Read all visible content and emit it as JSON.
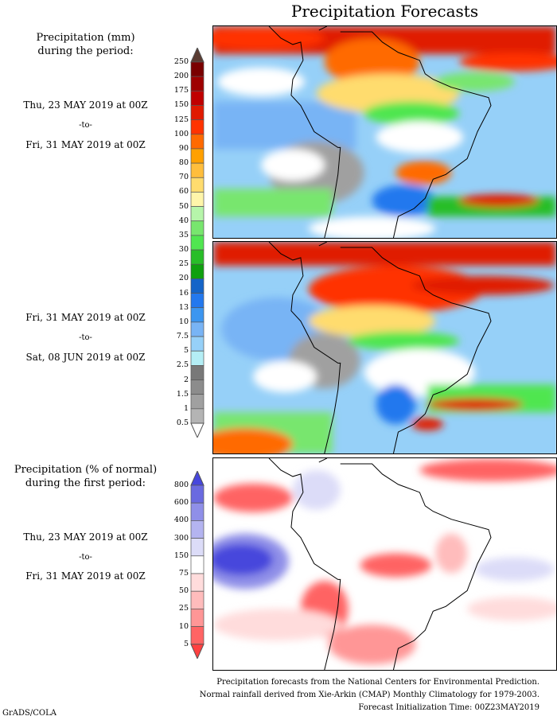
{
  "title": "Precipitation Forecasts",
  "period1": {
    "heading": [
      "Precipitation (mm)",
      "during the period:"
    ],
    "start": "Thu, 23 MAY 2019 at 00Z",
    "to": "-to-",
    "end": "Fri, 31 MAY 2019 at 00Z"
  },
  "period2": {
    "start": "Fri, 31 MAY 2019 at 00Z",
    "to": "-to-",
    "end": "Sat, 08 JUN 2019 at 00Z"
  },
  "period3": {
    "heading": [
      "Precipitation (% of normal)",
      "during the first period:"
    ],
    "start": "Thu, 23 MAY 2019 at 00Z",
    "to": "-to-",
    "end": "Fri, 31 MAY 2019 at 00Z"
  },
  "mm_scale": {
    "labels": [
      "250",
      "200",
      "175",
      "150",
      "125",
      "100",
      "90",
      "80",
      "70",
      "60",
      "50",
      "40",
      "35",
      "30",
      "25",
      "20",
      "16",
      "13",
      "10",
      "7.5",
      "5",
      "2.5",
      "2",
      "1.5",
      "1",
      "0.5"
    ],
    "colors": [
      "#7a0000",
      "#9e0000",
      "#c00000",
      "#e01a00",
      "#ff3300",
      "#ff6a00",
      "#ffa000",
      "#ffbe3c",
      "#ffdc6e",
      "#fff5aa",
      "#b6f5aa",
      "#78e66e",
      "#50e650",
      "#28be28",
      "#0fa00f",
      "#1464c8",
      "#2378ee",
      "#3c96f0",
      "#78b4f5",
      "#96d0f8",
      "#b4eef5",
      "#787878",
      "#8c8c8c",
      "#a0a0a0",
      "#b4b4b4"
    ],
    "over_color": "#5a3c32",
    "under_color": "#ffffff"
  },
  "pct_scale": {
    "labels": [
      "800",
      "600",
      "400",
      "300",
      "150",
      "75",
      "50",
      "25",
      "10",
      "5"
    ],
    "colors": [
      "#6a6ae0",
      "#8f8fe8",
      "#b4b4f0",
      "#dcdcf8",
      "#ffffff",
      "#ffdcdc",
      "#ffbcbc",
      "#ff9696",
      "#ff6464"
    ],
    "over_color": "#4646dc",
    "under_color": "#ff4040"
  },
  "footer": [
    "Precipitation forecasts from the National Centers for Environmental Prediction.",
    "Normal rainfall derived from Xie-Arkin (CMAP) Monthly Climatology for 1979-2003.",
    "Forecast Initialization Time: 00Z23MAY2019"
  ],
  "credit": "GrADS/COLA"
}
